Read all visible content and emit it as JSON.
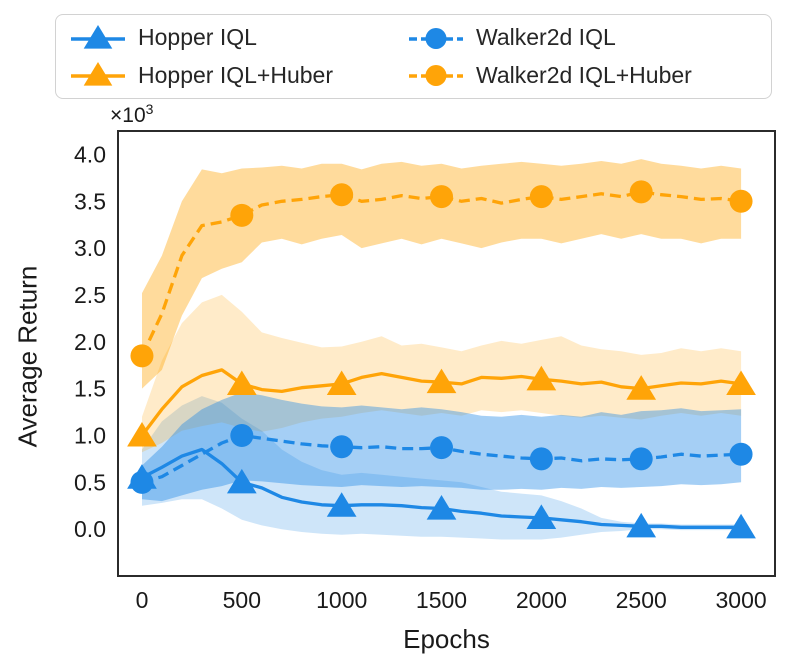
{
  "axes": {
    "offset_base": "×10",
    "offset_exp": "3"
  },
  "legend": {
    "display_order": [
      0,
      2,
      1,
      3
    ]
  },
  "chart_data": {
    "type": "line",
    "title": "",
    "xlabel": "Epochs",
    "ylabel": "Average Return",
    "y_unit_multiplier": 1000,
    "xlim": [
      -120,
      3170
    ],
    "ylim": [
      -0.5,
      4.25
    ],
    "xticks": [
      0,
      500,
      1000,
      1500,
      2000,
      2500,
      3000
    ],
    "yticks": [
      0.0,
      0.5,
      1.0,
      1.5,
      2.0,
      2.5,
      3.0,
      3.5,
      4.0
    ],
    "ytick_decimals": 1,
    "grid": false,
    "legend_position": "upper-left-outside",
    "x": [
      0,
      100,
      200,
      300,
      400,
      500,
      600,
      700,
      800,
      900,
      1000,
      1100,
      1200,
      1300,
      1400,
      1500,
      1600,
      1700,
      1800,
      1900,
      2000,
      2100,
      2200,
      2300,
      2400,
      2500,
      2600,
      2700,
      2800,
      2900,
      3000
    ],
    "marker_every": 5,
    "series": [
      {
        "name": "hopper_iql",
        "label": "Hopper IQL",
        "color": "#1e88e5",
        "linestyle": "solid",
        "marker": "triangle",
        "band_opacity": 0.22,
        "values": [
          0.55,
          0.66,
          0.78,
          0.85,
          0.7,
          0.5,
          0.44,
          0.34,
          0.29,
          0.26,
          0.25,
          0.26,
          0.26,
          0.25,
          0.23,
          0.22,
          0.19,
          0.17,
          0.14,
          0.13,
          0.12,
          0.1,
          0.08,
          0.05,
          0.04,
          0.03,
          0.03,
          0.02,
          0.02,
          0.02,
          0.02
        ],
        "lower": [
          0.25,
          0.28,
          0.32,
          0.32,
          0.22,
          0.1,
          0.04,
          0.0,
          -0.03,
          -0.05,
          -0.06,
          -0.05,
          -0.06,
          -0.07,
          -0.08,
          -0.08,
          -0.09,
          -0.1,
          -0.11,
          -0.11,
          -0.11,
          -0.09,
          -0.06,
          -0.03,
          -0.02,
          0.0,
          0.0,
          -0.01,
          -0.01,
          -0.01,
          -0.01
        ],
        "upper": [
          0.85,
          1.15,
          1.32,
          1.42,
          1.35,
          1.18,
          1.05,
          0.85,
          0.72,
          0.63,
          0.58,
          0.6,
          0.58,
          0.56,
          0.54,
          0.52,
          0.5,
          0.45,
          0.4,
          0.38,
          0.36,
          0.3,
          0.22,
          0.12,
          0.08,
          0.06,
          0.06,
          0.05,
          0.05,
          0.05,
          0.05
        ]
      },
      {
        "name": "hopper_iql_huber",
        "label": "Hopper IQL+Huber",
        "color": "#ffa408",
        "linestyle": "solid",
        "marker": "triangle",
        "band_opacity": 0.22,
        "values": [
          1.0,
          1.28,
          1.52,
          1.64,
          1.7,
          1.55,
          1.49,
          1.47,
          1.51,
          1.53,
          1.55,
          1.62,
          1.66,
          1.62,
          1.58,
          1.57,
          1.55,
          1.62,
          1.61,
          1.63,
          1.6,
          1.58,
          1.55,
          1.57,
          1.52,
          1.5,
          1.53,
          1.56,
          1.55,
          1.58,
          1.55
        ],
        "lower": [
          0.82,
          0.92,
          1.05,
          1.1,
          1.14,
          1.08,
          1.04,
          1.08,
          1.14,
          1.18,
          1.2,
          1.24,
          1.27,
          1.24,
          1.21,
          1.24,
          1.21,
          1.27,
          1.25,
          1.27,
          1.24,
          1.21,
          1.19,
          1.21,
          1.19,
          1.17,
          1.21,
          1.24,
          1.21,
          1.24,
          1.21
        ],
        "upper": [
          1.2,
          1.8,
          2.2,
          2.42,
          2.5,
          2.32,
          2.1,
          2.04,
          1.99,
          1.94,
          1.95,
          2.0,
          2.06,
          1.96,
          1.98,
          1.94,
          1.9,
          1.96,
          2.01,
          1.98,
          2.02,
          2.06,
          1.96,
          1.92,
          1.9,
          1.86,
          1.88,
          1.93,
          1.9,
          1.93,
          1.9
        ]
      },
      {
        "name": "walker2d_iql",
        "label": "Walker2d IQL",
        "color": "#1e88e5",
        "linestyle": "dashed",
        "marker": "circle",
        "band_opacity": 0.4,
        "values": [
          0.5,
          0.56,
          0.68,
          0.8,
          0.92,
          1.0,
          0.97,
          0.94,
          0.91,
          0.89,
          0.88,
          0.87,
          0.88,
          0.86,
          0.86,
          0.87,
          0.83,
          0.8,
          0.78,
          0.76,
          0.75,
          0.76,
          0.73,
          0.75,
          0.74,
          0.75,
          0.77,
          0.8,
          0.78,
          0.79,
          0.8
        ],
        "lower": [
          0.32,
          0.3,
          0.36,
          0.42,
          0.46,
          0.52,
          0.51,
          0.49,
          0.47,
          0.46,
          0.45,
          0.47,
          0.46,
          0.45,
          0.46,
          0.45,
          0.44,
          0.42,
          0.42,
          0.43,
          0.42,
          0.44,
          0.43,
          0.45,
          0.44,
          0.45,
          0.46,
          0.48,
          0.47,
          0.48,
          0.5
        ],
        "upper": [
          0.68,
          0.88,
          1.12,
          1.28,
          1.38,
          1.46,
          1.43,
          1.38,
          1.34,
          1.31,
          1.3,
          1.32,
          1.3,
          1.28,
          1.3,
          1.28,
          1.25,
          1.21,
          1.2,
          1.22,
          1.2,
          1.22,
          1.2,
          1.25,
          1.22,
          1.26,
          1.27,
          1.29,
          1.26,
          1.27,
          1.28
        ]
      },
      {
        "name": "walker2d_iql_huber",
        "label": "Walker2d IQL+Huber",
        "color": "#ffa408",
        "linestyle": "dashed",
        "marker": "circle",
        "band_opacity": 0.4,
        "values": [
          1.85,
          2.3,
          2.92,
          3.24,
          3.28,
          3.35,
          3.46,
          3.5,
          3.52,
          3.55,
          3.57,
          3.5,
          3.52,
          3.56,
          3.53,
          3.55,
          3.5,
          3.53,
          3.48,
          3.52,
          3.55,
          3.52,
          3.55,
          3.58,
          3.55,
          3.6,
          3.57,
          3.55,
          3.52,
          3.53,
          3.5
        ],
        "lower": [
          1.5,
          1.7,
          2.28,
          2.68,
          2.78,
          2.85,
          3.06,
          3.1,
          3.04,
          3.1,
          3.14,
          3.0,
          3.05,
          3.1,
          3.04,
          3.1,
          3.05,
          3.0,
          3.06,
          3.1,
          3.1,
          3.05,
          3.1,
          3.15,
          3.1,
          3.15,
          3.1,
          3.1,
          3.05,
          3.1,
          3.1
        ],
        "upper": [
          2.52,
          2.92,
          3.5,
          3.84,
          3.8,
          3.85,
          3.86,
          3.88,
          3.85,
          3.9,
          3.9,
          3.84,
          3.9,
          3.92,
          3.88,
          3.9,
          3.85,
          3.88,
          3.9,
          3.92,
          3.9,
          3.88,
          3.9,
          3.93,
          3.9,
          3.95,
          3.9,
          3.88,
          3.85,
          3.88,
          3.85
        ]
      }
    ]
  }
}
